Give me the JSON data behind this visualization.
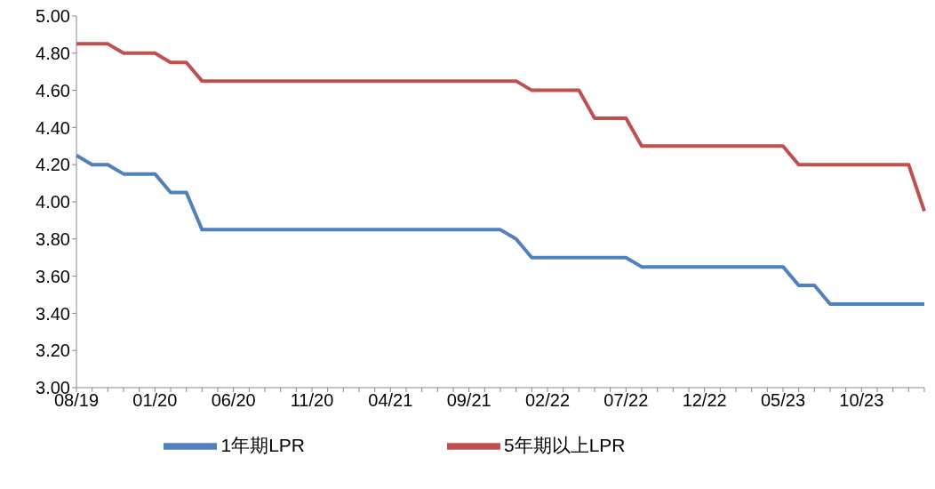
{
  "chart_data": {
    "type": "line",
    "categories": [
      "08/19",
      null,
      null,
      null,
      null,
      "01/20",
      null,
      null,
      null,
      null,
      "06/20",
      null,
      null,
      null,
      null,
      "11/20",
      null,
      null,
      null,
      null,
      "04/21",
      null,
      null,
      null,
      null,
      "09/21",
      null,
      null,
      null,
      null,
      "02/22",
      null,
      null,
      null,
      null,
      "07/22",
      null,
      null,
      null,
      null,
      "12/22",
      null,
      null,
      null,
      null,
      "05/23",
      null,
      null,
      null,
      null,
      "10/23",
      null,
      null,
      null,
      null
    ],
    "series": [
      {
        "name": "1年期LPR",
        "color": "#4f81bd",
        "values": [
          4.25,
          4.2,
          4.2,
          4.15,
          4.15,
          4.15,
          4.05,
          4.05,
          3.85,
          3.85,
          3.85,
          3.85,
          3.85,
          3.85,
          3.85,
          3.85,
          3.85,
          3.85,
          3.85,
          3.85,
          3.85,
          3.85,
          3.85,
          3.85,
          3.85,
          3.85,
          3.85,
          3.85,
          3.8,
          3.7,
          3.7,
          3.7,
          3.7,
          3.7,
          3.7,
          3.7,
          3.65,
          3.65,
          3.65,
          3.65,
          3.65,
          3.65,
          3.65,
          3.65,
          3.65,
          3.65,
          3.55,
          3.55,
          3.45,
          3.45,
          3.45,
          3.45,
          3.45,
          3.45,
          3.45
        ]
      },
      {
        "name": "5年期以上LPR",
        "color": "#c0504d",
        "values": [
          4.85,
          4.85,
          4.85,
          4.8,
          4.8,
          4.8,
          4.75,
          4.75,
          4.65,
          4.65,
          4.65,
          4.65,
          4.65,
          4.65,
          4.65,
          4.65,
          4.65,
          4.65,
          4.65,
          4.65,
          4.65,
          4.65,
          4.65,
          4.65,
          4.65,
          4.65,
          4.65,
          4.65,
          4.65,
          4.6,
          4.6,
          4.6,
          4.6,
          4.45,
          4.45,
          4.45,
          4.3,
          4.3,
          4.3,
          4.3,
          4.3,
          4.3,
          4.3,
          4.3,
          4.3,
          4.3,
          4.2,
          4.2,
          4.2,
          4.2,
          4.2,
          4.2,
          4.2,
          4.2,
          3.95
        ]
      }
    ],
    "ylim": [
      3.0,
      5.0
    ],
    "yticks": [
      {
        "value": 3.0,
        "label": "3.00"
      },
      {
        "value": 3.2,
        "label": "3.20"
      },
      {
        "value": 3.4,
        "label": "3.40"
      },
      {
        "value": 3.6,
        "label": "3.60"
      },
      {
        "value": 3.8,
        "label": "3.80"
      },
      {
        "value": 4.0,
        "label": "4.00"
      },
      {
        "value": 4.2,
        "label": "4.20"
      },
      {
        "value": 4.4,
        "label": "4.40"
      },
      {
        "value": 4.6,
        "label": "4.60"
      },
      {
        "value": 4.8,
        "label": "4.80"
      },
      {
        "value": 5.0,
        "label": "5.00"
      }
    ],
    "grid": false,
    "legend": "bottom",
    "marker": "none",
    "line_style": "solid"
  }
}
